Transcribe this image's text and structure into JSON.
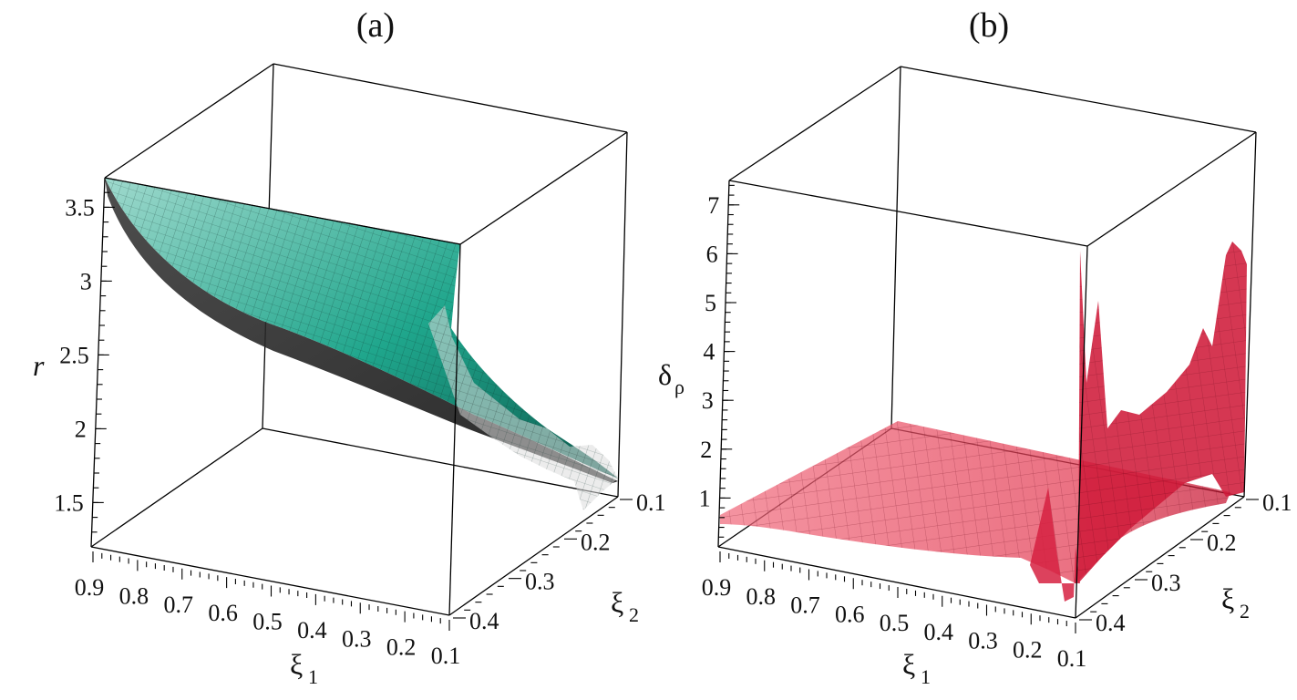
{
  "chart_data": [
    {
      "panel": "(a)",
      "type": "surface",
      "zlabel": "r",
      "xlabel": "ξ",
      "xlabel_sub": "1",
      "ylabel": "ξ",
      "ylabel_sub": "2",
      "x_ticks": [
        "0.9",
        "0.8",
        "0.7",
        "0.6",
        "0.5",
        "0.4",
        "0.3",
        "0.2",
        "0.1"
      ],
      "y_ticks": [
        "0.1",
        "0.2",
        "0.3",
        "0.4"
      ],
      "z_ticks": [
        "1.5",
        "2",
        "2.5",
        "3",
        "3.5"
      ],
      "x_range": [
        0.1,
        0.9
      ],
      "y_range": [
        0.1,
        0.4
      ],
      "z_range": [
        1.2,
        3.7
      ],
      "surface_color": "#1fa68c",
      "description_values": {
        "r_at_xi1_0.9": 3.72,
        "r_at_xi1_0.5": 2.7,
        "r_at_xi1_0.1": 1.65
      }
    },
    {
      "panel": "(b)",
      "type": "surface",
      "zlabel": "δ",
      "zlabel_sub": "ρ",
      "xlabel": "ξ",
      "xlabel_sub": "1",
      "ylabel": "ξ",
      "ylabel_sub": "2",
      "x_ticks": [
        "0.9",
        "0.8",
        "0.7",
        "0.6",
        "0.5",
        "0.4",
        "0.3",
        "0.2",
        "0.1"
      ],
      "y_ticks": [
        "0.1",
        "0.2",
        "0.3",
        "0.4"
      ],
      "z_ticks": [
        "1",
        "2",
        "3",
        "4",
        "5",
        "6",
        "7"
      ],
      "x_range": [
        0.1,
        0.9
      ],
      "y_range": [
        0.1,
        0.4
      ],
      "z_range": [
        0,
        7.5
      ],
      "surface_color": "#d81e3c",
      "description_values": {
        "delta_flat_region": 0.6,
        "delta_peak_near_xi1_0.1": 6.5
      }
    }
  ]
}
